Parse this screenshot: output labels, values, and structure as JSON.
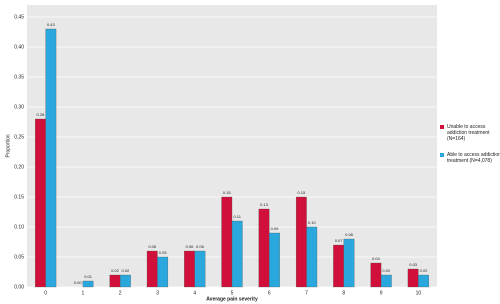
{
  "chart_data": {
    "type": "bar",
    "x_label": "Average pain severity",
    "y_label": "Proportion",
    "categories": [
      "0",
      "1",
      "2",
      "3",
      "4",
      "5",
      "6",
      "7",
      "8",
      "9",
      "10"
    ],
    "series": [
      {
        "name": "Unable to access addiction treatment (N=164)",
        "color": "#d0103a",
        "values": [
          0.28,
          0.0,
          0.02,
          0.06,
          0.06,
          0.15,
          0.13,
          0.15,
          0.07,
          0.04,
          0.03
        ],
        "value_labels": [
          "0.28",
          "0.00",
          "0.02",
          "0.06",
          "0.06",
          "0.15",
          "0.13",
          "0.15",
          "0.07",
          "0.04",
          "0.03"
        ]
      },
      {
        "name": "Able to access addiction treatment (N=4,078)",
        "color": "#2aa7dc",
        "values": [
          0.43,
          0.01,
          0.02,
          0.05,
          0.06,
          0.11,
          0.09,
          0.1,
          0.08,
          0.02,
          0.02
        ],
        "value_labels": [
          "0.43",
          "0.01",
          "0.02",
          "0.05",
          "0.06",
          "0.11",
          "0.09",
          "0.10",
          "0.08",
          "0.02",
          "0.02"
        ]
      }
    ],
    "ylim": [
      0,
      0.47
    ],
    "yticks": [
      {
        "value": 0,
        "label": "0.00"
      },
      0.05,
      {
        "value": 0.1,
        "label": "0.10"
      },
      0.15,
      {
        "value": 0.2,
        "label": "0.20"
      },
      0.25,
      {
        "value": 0.3,
        "label": "0.30"
      },
      0.35,
      {
        "value": 0.4,
        "label": "0.40"
      },
      0.45
    ],
    "grid": true
  }
}
